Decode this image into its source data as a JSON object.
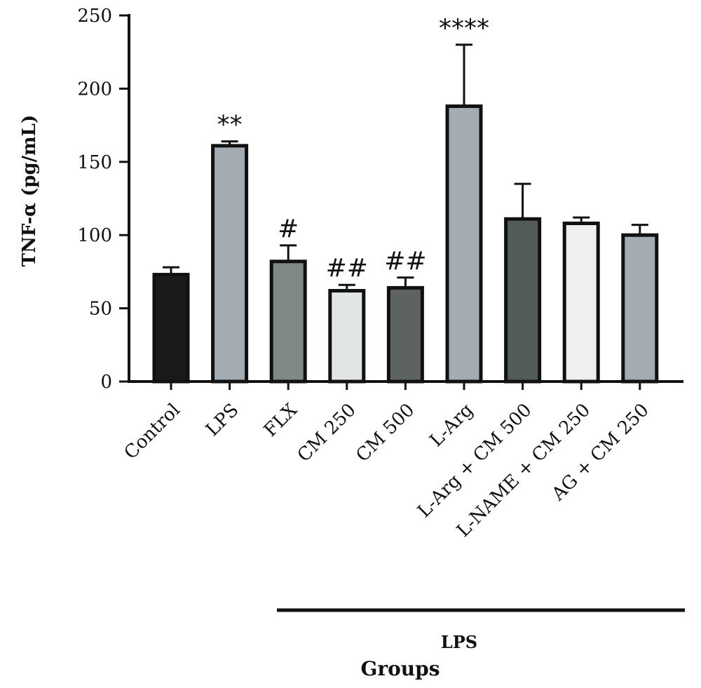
{
  "chart_data": {
    "type": "bar",
    "ylabel": "TNF-α (pg/mL)",
    "xlabel": "Groups",
    "ylim": [
      0,
      250
    ],
    "yticks": [
      "0",
      "50",
      "100",
      "150",
      "200",
      "250"
    ],
    "grid": false,
    "categories": [
      "Control",
      "LPS",
      "FLX",
      "CM 250",
      "CM 500",
      "L-Arg",
      "L-Arg + CM 500",
      "L-NAME + CM 250",
      "AG + CM 250"
    ],
    "values": [
      73,
      161,
      82,
      62,
      64,
      188,
      111,
      108,
      100
    ],
    "errors": [
      5,
      3,
      11,
      4,
      7,
      42,
      24,
      4,
      7
    ],
    "significance": [
      "",
      "**",
      "#",
      "##",
      "##",
      "****",
      "",
      "",
      ""
    ],
    "colors": [
      "#1a1a1a",
      "#a3acb3",
      "#7f8a86",
      "#e1e6e4",
      "#5c6362",
      "#a3acb3",
      "#525b5a",
      "#eef0f0",
      "#a3acb3"
    ],
    "group_bracket": {
      "label": "LPS"
    }
  }
}
